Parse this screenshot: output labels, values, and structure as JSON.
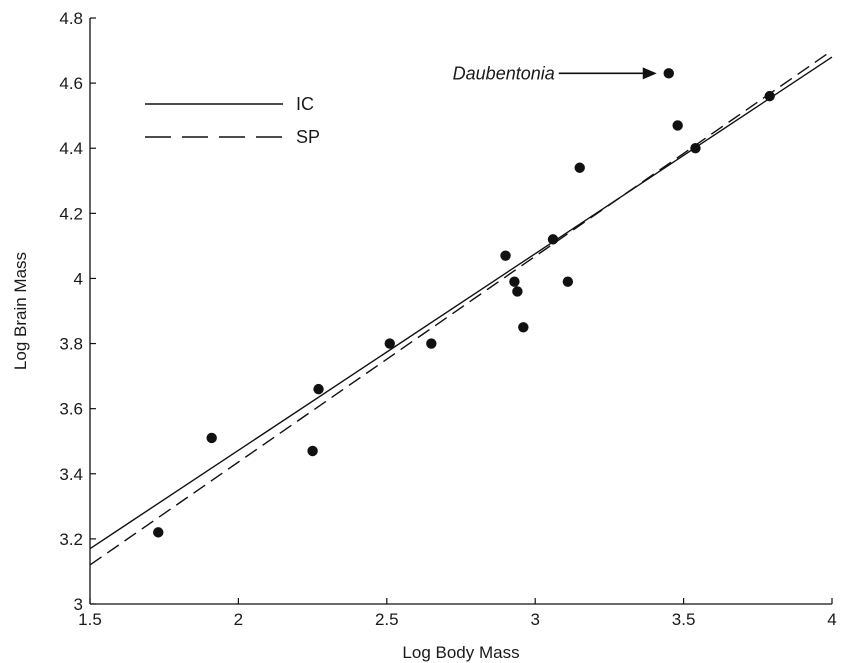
{
  "chart_data": {
    "type": "scatter",
    "title": "",
    "xlabel": "Log Body Mass",
    "ylabel": "Log Brain Mass",
    "xlim": [
      1.5,
      4
    ],
    "ylim": [
      3,
      4.8
    ],
    "xticks": [
      1.5,
      2,
      2.5,
      3,
      3.5,
      4
    ],
    "xtick_labels": [
      "1.5",
      "2",
      "2.5",
      "3",
      "3.5",
      "4"
    ],
    "yticks": [
      3,
      3.2,
      3.4,
      3.6,
      3.8,
      4,
      4.2,
      4.4,
      4.6,
      4.8
    ],
    "ytick_labels": [
      "3",
      "3.2",
      "3.4",
      "3.6",
      "3.8",
      "4",
      "4.2",
      "4.4",
      "4.6",
      "4.8"
    ],
    "grid": false,
    "legend_position": "top-left",
    "points": [
      {
        "x": 1.73,
        "y": 3.22
      },
      {
        "x": 1.91,
        "y": 3.51
      },
      {
        "x": 2.25,
        "y": 3.47
      },
      {
        "x": 2.27,
        "y": 3.66
      },
      {
        "x": 2.51,
        "y": 3.8
      },
      {
        "x": 2.65,
        "y": 3.8
      },
      {
        "x": 2.9,
        "y": 4.07
      },
      {
        "x": 2.93,
        "y": 3.99
      },
      {
        "x": 2.94,
        "y": 3.96
      },
      {
        "x": 2.96,
        "y": 3.85
      },
      {
        "x": 3.06,
        "y": 4.12
      },
      {
        "x": 3.11,
        "y": 3.99
      },
      {
        "x": 3.15,
        "y": 4.34
      },
      {
        "x": 3.45,
        "y": 4.63
      },
      {
        "x": 3.48,
        "y": 4.47
      },
      {
        "x": 3.54,
        "y": 4.4
      },
      {
        "x": 3.79,
        "y": 4.56
      }
    ],
    "lines": [
      {
        "name": "IC",
        "style": "solid",
        "x": [
          1.5,
          4
        ],
        "y": [
          3.17,
          4.68
        ]
      },
      {
        "name": "SP",
        "style": "dashed",
        "x": [
          1.5,
          4
        ],
        "y": [
          3.12,
          4.7
        ]
      }
    ],
    "annotation": {
      "text": "Daubentonia",
      "x": 3.45,
      "y": 4.63
    }
  }
}
